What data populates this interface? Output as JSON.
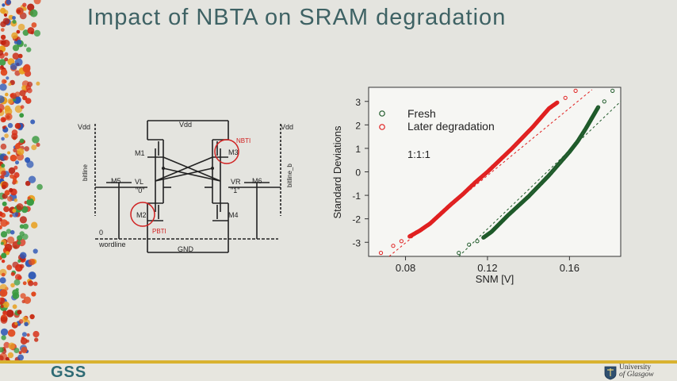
{
  "slide": {
    "title": "Impact of NBTA on SRAM degradation",
    "footer_logo": "GSS",
    "university_line1": "University",
    "university_line2": "of Glasgow"
  },
  "circuit": {
    "vdd_left": "Vdd",
    "vdd_top": "Vdd",
    "vdd_right": "Vdd",
    "m1": "M1",
    "m2": "M2",
    "m3": "M3",
    "m4": "M4",
    "m5": "M5",
    "m6": "M6",
    "vl": "VL",
    "vr": "VR",
    "zero_node": "\"0\"",
    "one_node": "\"1\"",
    "nbti": "NBTI",
    "pbti": "PBTI",
    "bitline": "bitline",
    "bitline_b": "bitline_b",
    "zero_left": "0",
    "wordline": "wordline",
    "gnd": "GND"
  },
  "colors": {
    "title": "#3e6264",
    "fresh": "#1f5a2a",
    "later": "#e02020",
    "annotation": "#d02020",
    "footer_bar": "#d9b230"
  },
  "chart_data": {
    "type": "scatter",
    "title": "",
    "xlabel": "SNM [V]",
    "ylabel": "Standard Deviations",
    "xlim": [
      0.062,
      0.185
    ],
    "ylim": [
      -3.6,
      3.6
    ],
    "xticks": [
      0.08,
      0.12,
      0.16
    ],
    "xtick_labels": [
      "0.08",
      "0.12",
      "0.16"
    ],
    "yticks": [
      -3,
      -2,
      -1,
      0,
      1,
      2,
      3
    ],
    "yticks_labels": [
      "-3",
      "-2",
      "-1",
      "0",
      "1",
      "2",
      "3"
    ],
    "legend": [
      "Fresh",
      "Later degradation"
    ],
    "legend_position": "top-left",
    "annotation": "1:1:1",
    "series": [
      {
        "name": "Fresh",
        "color": "#1f5a2a",
        "points": [
          [
            0.106,
            -3.45
          ],
          [
            0.111,
            -3.1
          ],
          [
            0.115,
            -2.95
          ],
          [
            0.118,
            -2.8
          ],
          [
            0.122,
            -2.55
          ],
          [
            0.126,
            -2.2
          ],
          [
            0.13,
            -1.85
          ],
          [
            0.135,
            -1.45
          ],
          [
            0.14,
            -1.05
          ],
          [
            0.145,
            -0.6
          ],
          [
            0.15,
            -0.15
          ],
          [
            0.155,
            0.35
          ],
          [
            0.16,
            0.85
          ],
          [
            0.164,
            1.3
          ],
          [
            0.168,
            1.85
          ],
          [
            0.171,
            2.3
          ],
          [
            0.174,
            2.75
          ],
          [
            0.177,
            3.0
          ],
          [
            0.181,
            3.45
          ]
        ],
        "reference_line": [
          [
            0.106,
            -3.6
          ],
          [
            0.185,
            3.0
          ]
        ]
      },
      {
        "name": "Later degradation",
        "color": "#e02020",
        "points": [
          [
            0.068,
            -3.45
          ],
          [
            0.074,
            -3.15
          ],
          [
            0.078,
            -2.95
          ],
          [
            0.082,
            -2.75
          ],
          [
            0.087,
            -2.5
          ],
          [
            0.092,
            -2.2
          ],
          [
            0.097,
            -1.8
          ],
          [
            0.102,
            -1.4
          ],
          [
            0.108,
            -0.95
          ],
          [
            0.114,
            -0.45
          ],
          [
            0.12,
            0.0
          ],
          [
            0.126,
            0.5
          ],
          [
            0.132,
            1.0
          ],
          [
            0.137,
            1.45
          ],
          [
            0.142,
            1.9
          ],
          [
            0.146,
            2.3
          ],
          [
            0.15,
            2.7
          ],
          [
            0.154,
            2.95
          ],
          [
            0.158,
            3.15
          ],
          [
            0.163,
            3.45
          ]
        ],
        "reference_line": [
          [
            0.072,
            -3.6
          ],
          [
            0.171,
            3.5
          ]
        ]
      }
    ]
  }
}
